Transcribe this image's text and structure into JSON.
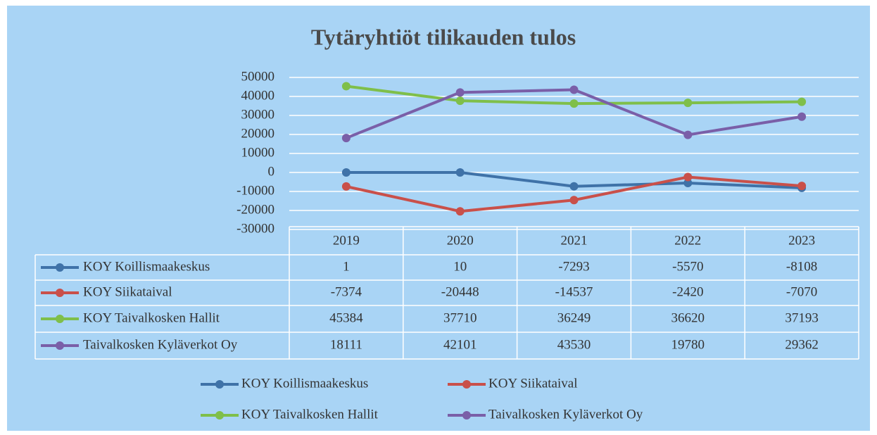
{
  "chart_data": {
    "type": "line",
    "title": "Tytäryhtiöt tilikauden tulos",
    "categories": [
      "2019",
      "2020",
      "2021",
      "2022",
      "2023"
    ],
    "series": [
      {
        "name": "KOY Koillismaakeskus",
        "color": "#3f72a8",
        "values": [
          1,
          10,
          -7293,
          -5570,
          -8108
        ]
      },
      {
        "name": "KOY Siikataival",
        "color": "#c9504a",
        "values": [
          -7374,
          -20448,
          -14537,
          -2420,
          -7070
        ]
      },
      {
        "name": "KOY Taivalkosken Hallit",
        "color": "#7fbf4a",
        "values": [
          45384,
          37710,
          36249,
          36620,
          37193
        ]
      },
      {
        "name": "Taivalkosken Kyläverkot Oy",
        "color": "#7a5fa8",
        "values": [
          18111,
          42101,
          43530,
          19780,
          29362
        ]
      }
    ],
    "ylim": [
      -30000,
      50000
    ],
    "yticks": [
      -30000,
      -20000,
      -10000,
      0,
      10000,
      20000,
      30000,
      40000,
      50000
    ],
    "grid": true
  }
}
